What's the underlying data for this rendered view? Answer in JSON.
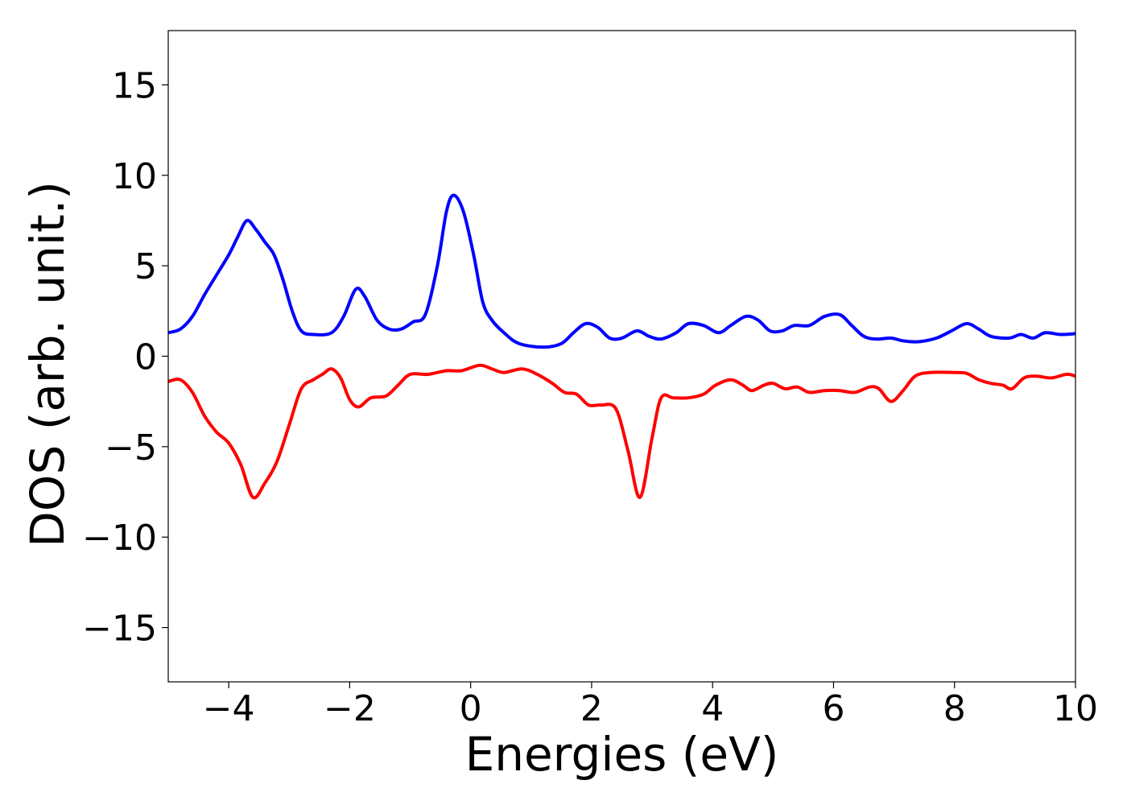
{
  "chart_data": {
    "type": "line",
    "title": "",
    "xlabel": "Energies (eV)",
    "ylabel": "DOS (arb. unit.)",
    "xlim": [
      -5,
      10
    ],
    "ylim": [
      -18,
      18
    ],
    "x_ticks": [
      -4,
      -2,
      0,
      2,
      4,
      6,
      8,
      10
    ],
    "x_tick_labels": [
      "−4",
      "−2",
      "0",
      "2",
      "4",
      "6",
      "8",
      "10"
    ],
    "y_ticks": [
      -15,
      -10,
      -5,
      0,
      5,
      10,
      15
    ],
    "y_tick_labels": [
      "−15",
      "−10",
      "−5",
      "0",
      "5",
      "10",
      "15"
    ],
    "grid": false,
    "legend": "none",
    "series": [
      {
        "color": "#0000ff",
        "points": [
          [
            -5.0,
            1.3
          ],
          [
            -4.8,
            1.5
          ],
          [
            -4.6,
            2.2
          ],
          [
            -4.4,
            3.4
          ],
          [
            -4.2,
            4.5
          ],
          [
            -4.0,
            5.6
          ],
          [
            -3.85,
            6.6
          ],
          [
            -3.7,
            7.5
          ],
          [
            -3.55,
            7.0
          ],
          [
            -3.4,
            6.3
          ],
          [
            -3.25,
            5.6
          ],
          [
            -3.1,
            4.2
          ],
          [
            -2.95,
            2.5
          ],
          [
            -2.8,
            1.4
          ],
          [
            -2.6,
            1.2
          ],
          [
            -2.3,
            1.3
          ],
          [
            -2.1,
            2.2
          ],
          [
            -1.9,
            3.7
          ],
          [
            -1.75,
            3.3
          ],
          [
            -1.55,
            2.0
          ],
          [
            -1.35,
            1.5
          ],
          [
            -1.15,
            1.5
          ],
          [
            -0.95,
            1.9
          ],
          [
            -0.75,
            2.3
          ],
          [
            -0.55,
            5.0
          ],
          [
            -0.4,
            8.0
          ],
          [
            -0.28,
            8.9
          ],
          [
            -0.12,
            8.0
          ],
          [
            0.05,
            5.6
          ],
          [
            0.2,
            3.0
          ],
          [
            0.35,
            2.0
          ],
          [
            0.55,
            1.3
          ],
          [
            0.8,
            0.7
          ],
          [
            1.2,
            0.5
          ],
          [
            1.5,
            0.7
          ],
          [
            1.7,
            1.3
          ],
          [
            1.9,
            1.8
          ],
          [
            2.1,
            1.6
          ],
          [
            2.3,
            1.0
          ],
          [
            2.5,
            1.0
          ],
          [
            2.75,
            1.4
          ],
          [
            2.95,
            1.1
          ],
          [
            3.15,
            0.95
          ],
          [
            3.4,
            1.3
          ],
          [
            3.6,
            1.8
          ],
          [
            3.85,
            1.7
          ],
          [
            4.1,
            1.3
          ],
          [
            4.3,
            1.7
          ],
          [
            4.55,
            2.2
          ],
          [
            4.75,
            2.0
          ],
          [
            4.95,
            1.4
          ],
          [
            5.15,
            1.4
          ],
          [
            5.35,
            1.7
          ],
          [
            5.6,
            1.7
          ],
          [
            5.85,
            2.2
          ],
          [
            6.1,
            2.3
          ],
          [
            6.3,
            1.7
          ],
          [
            6.5,
            1.1
          ],
          [
            6.7,
            0.95
          ],
          [
            6.95,
            1.0
          ],
          [
            7.15,
            0.85
          ],
          [
            7.4,
            0.8
          ],
          [
            7.7,
            1.0
          ],
          [
            7.95,
            1.4
          ],
          [
            8.2,
            1.8
          ],
          [
            8.4,
            1.5
          ],
          [
            8.6,
            1.1
          ],
          [
            8.9,
            1.0
          ],
          [
            9.1,
            1.2
          ],
          [
            9.3,
            1.0
          ],
          [
            9.5,
            1.3
          ],
          [
            9.75,
            1.2
          ],
          [
            10.0,
            1.25
          ]
        ]
      },
      {
        "color": "#ff0000",
        "points": [
          [
            -5.0,
            -1.4
          ],
          [
            -4.8,
            -1.3
          ],
          [
            -4.6,
            -2.0
          ],
          [
            -4.4,
            -3.3
          ],
          [
            -4.2,
            -4.2
          ],
          [
            -4.0,
            -4.8
          ],
          [
            -3.8,
            -6.0
          ],
          [
            -3.6,
            -7.8
          ],
          [
            -3.4,
            -7.0
          ],
          [
            -3.2,
            -5.8
          ],
          [
            -3.0,
            -3.8
          ],
          [
            -2.8,
            -1.8
          ],
          [
            -2.6,
            -1.3
          ],
          [
            -2.45,
            -1.0
          ],
          [
            -2.3,
            -0.7
          ],
          [
            -2.15,
            -1.2
          ],
          [
            -2.0,
            -2.4
          ],
          [
            -1.85,
            -2.8
          ],
          [
            -1.65,
            -2.3
          ],
          [
            -1.4,
            -2.2
          ],
          [
            -1.2,
            -1.6
          ],
          [
            -1.0,
            -1.0
          ],
          [
            -0.7,
            -1.0
          ],
          [
            -0.4,
            -0.8
          ],
          [
            -0.15,
            -0.8
          ],
          [
            0.15,
            -0.5
          ],
          [
            0.35,
            -0.7
          ],
          [
            0.55,
            -0.9
          ],
          [
            0.85,
            -0.7
          ],
          [
            1.1,
            -1.0
          ],
          [
            1.35,
            -1.5
          ],
          [
            1.55,
            -2.0
          ],
          [
            1.75,
            -2.1
          ],
          [
            1.95,
            -2.7
          ],
          [
            2.15,
            -2.7
          ],
          [
            2.4,
            -2.9
          ],
          [
            2.6,
            -5.2
          ],
          [
            2.8,
            -7.8
          ],
          [
            3.0,
            -4.5
          ],
          [
            3.15,
            -2.3
          ],
          [
            3.35,
            -2.3
          ],
          [
            3.6,
            -2.3
          ],
          [
            3.85,
            -2.1
          ],
          [
            4.05,
            -1.6
          ],
          [
            4.3,
            -1.3
          ],
          [
            4.5,
            -1.6
          ],
          [
            4.65,
            -1.9
          ],
          [
            4.85,
            -1.6
          ],
          [
            5.0,
            -1.5
          ],
          [
            5.2,
            -1.8
          ],
          [
            5.4,
            -1.7
          ],
          [
            5.6,
            -2.0
          ],
          [
            5.85,
            -1.9
          ],
          [
            6.1,
            -1.9
          ],
          [
            6.35,
            -2.0
          ],
          [
            6.6,
            -1.7
          ],
          [
            6.75,
            -1.8
          ],
          [
            6.95,
            -2.5
          ],
          [
            7.15,
            -1.9
          ],
          [
            7.35,
            -1.1
          ],
          [
            7.6,
            -0.9
          ],
          [
            8.0,
            -0.9
          ],
          [
            8.2,
            -0.95
          ],
          [
            8.4,
            -1.3
          ],
          [
            8.6,
            -1.5
          ],
          [
            8.8,
            -1.6
          ],
          [
            8.95,
            -1.8
          ],
          [
            9.15,
            -1.2
          ],
          [
            9.35,
            -1.1
          ],
          [
            9.6,
            -1.2
          ],
          [
            9.85,
            -1.0
          ],
          [
            10.0,
            -1.1
          ]
        ]
      }
    ]
  }
}
